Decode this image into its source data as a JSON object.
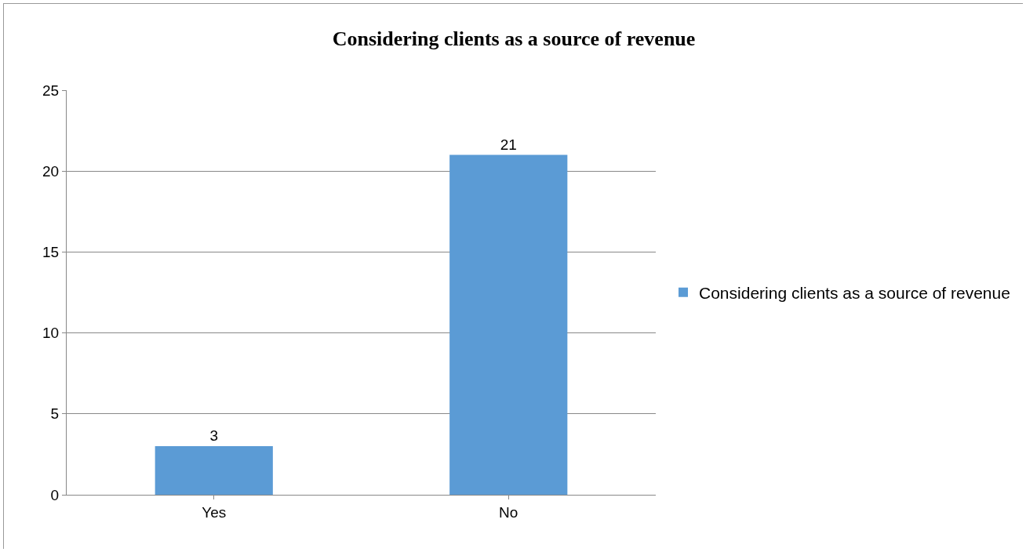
{
  "chart_data": {
    "type": "bar",
    "title": "Considering clients as a source of revenue",
    "categories": [
      "Yes",
      "No"
    ],
    "series": [
      {
        "name": "Considering clients as a source of revenue",
        "color": "#5b9bd5",
        "values": [
          3,
          21
        ]
      }
    ],
    "ylim": [
      0,
      25
    ],
    "yticks": [
      0,
      5,
      10,
      15,
      20,
      25
    ],
    "grid": "y",
    "legend": "right",
    "data_labels": true
  }
}
